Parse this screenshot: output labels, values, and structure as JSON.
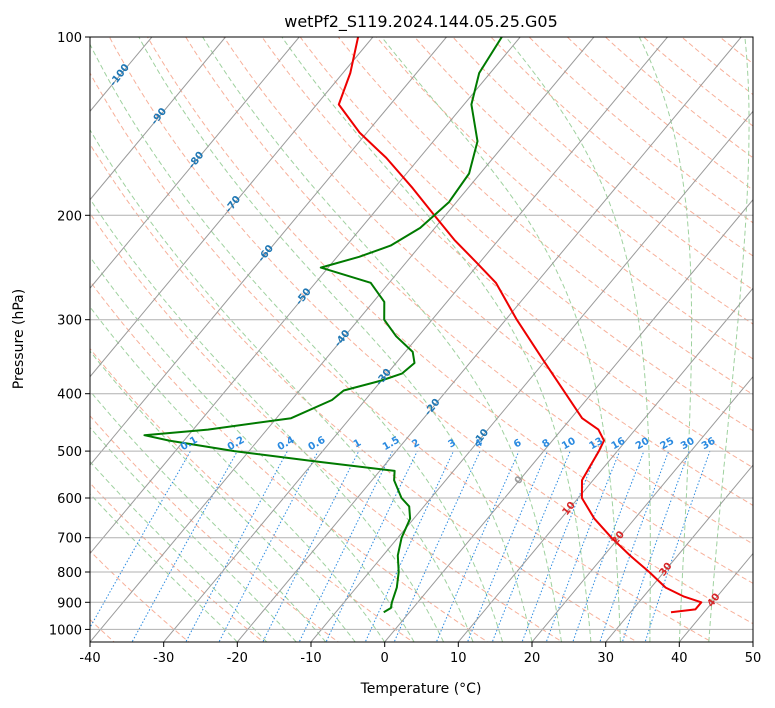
{
  "chart_data": {
    "type": "line",
    "subtype": "skew-t log-p diagram",
    "title": "wetPf2_S119.2024.144.05.25.G05",
    "xlabel": "Temperature (°C)",
    "ylabel": "Pressure (hPa)",
    "xlim": [
      -40,
      50
    ],
    "ylim": [
      1050,
      100
    ],
    "y_scale": "log",
    "x_ticks": [
      "-40",
      "-30",
      "-20",
      "-10",
      "0",
      "10",
      "20",
      "30",
      "40",
      "50"
    ],
    "y_ticks": [
      "100",
      "200",
      "300",
      "400",
      "500",
      "600",
      "700",
      "800",
      "900",
      "1000"
    ],
    "grid": true,
    "colors": {
      "temperature": "#ee0000",
      "dewpoint": "#007a00",
      "isotherm": "#9a9a9a",
      "dry_adiabat": "#f7b09a",
      "moist_adiabat": "#9fd19f",
      "mixing_ratio": "#2a8ae0",
      "lcl_curve": "#d8c4a8",
      "label_blue": "#1f77b4",
      "label_red": "#d62728",
      "label_mixing": "#2a8ae0"
    },
    "series": [
      {
        "key": "temperature",
        "points": [
          [
            935,
            35.5
          ],
          [
            925,
            38.5
          ],
          [
            900,
            38.5
          ],
          [
            880,
            35.5
          ],
          [
            850,
            32.0
          ],
          [
            800,
            28.0
          ],
          [
            750,
            23.5
          ],
          [
            700,
            19.0
          ],
          [
            650,
            14.5
          ],
          [
            600,
            10.5
          ],
          [
            560,
            8.5
          ],
          [
            530,
            8.0
          ],
          [
            500,
            7.5
          ],
          [
            480,
            7.0
          ],
          [
            460,
            5.0
          ],
          [
            440,
            1.5
          ],
          [
            400,
            -3.5
          ],
          [
            350,
            -10.5
          ],
          [
            300,
            -18.5
          ],
          [
            260,
            -25.5
          ],
          [
            240,
            -30.5
          ],
          [
            220,
            -36.0
          ],
          [
            200,
            -41.5
          ],
          [
            180,
            -47.5
          ],
          [
            160,
            -54.5
          ],
          [
            145,
            -61.0
          ],
          [
            130,
            -67.0
          ],
          [
            115,
            -69.0
          ],
          [
            100,
            -72.0
          ]
        ]
      },
      {
        "key": "dewpoint",
        "points": [
          [
            935,
            -3.5
          ],
          [
            920,
            -3.0
          ],
          [
            900,
            -3.5
          ],
          [
            850,
            -4.5
          ],
          [
            800,
            -6.0
          ],
          [
            750,
            -8.0
          ],
          [
            700,
            -9.5
          ],
          [
            650,
            -10.5
          ],
          [
            620,
            -12.0
          ],
          [
            600,
            -14.0
          ],
          [
            560,
            -17.0
          ],
          [
            540,
            -18.0
          ],
          [
            520,
            -30.0
          ],
          [
            500,
            -42.0
          ],
          [
            480,
            -52.0
          ],
          [
            470,
            -56.0
          ],
          [
            460,
            -48.0
          ],
          [
            440,
            -38.0
          ],
          [
            410,
            -34.5
          ],
          [
            395,
            -34.0
          ],
          [
            380,
            -30.0
          ],
          [
            370,
            -28.0
          ],
          [
            355,
            -27.5
          ],
          [
            340,
            -29.0
          ],
          [
            320,
            -33.0
          ],
          [
            300,
            -36.5
          ],
          [
            280,
            -38.5
          ],
          [
            260,
            -42.5
          ],
          [
            245,
            -51.0
          ],
          [
            235,
            -47.0
          ],
          [
            225,
            -44.0
          ],
          [
            210,
            -42.0
          ],
          [
            190,
            -41.0
          ],
          [
            170,
            -41.5
          ],
          [
            150,
            -44.0
          ],
          [
            130,
            -49.0
          ],
          [
            115,
            -51.5
          ],
          [
            100,
            -52.5
          ]
        ]
      }
    ],
    "isotherm_labels": [
      "-100",
      "-90",
      "-80",
      "-70",
      "-60",
      "-50",
      "-40",
      "-30",
      "-20",
      "-10",
      "0",
      "10",
      "20",
      "30",
      "40"
    ],
    "mixing_ratio_labels": [
      "0.1",
      "0.2",
      "0.4",
      "0.6",
      "1",
      "1.5",
      "2",
      "3",
      "4",
      "6",
      "8",
      "10",
      "13",
      "16",
      "20",
      "25",
      "30",
      "36"
    ]
  }
}
